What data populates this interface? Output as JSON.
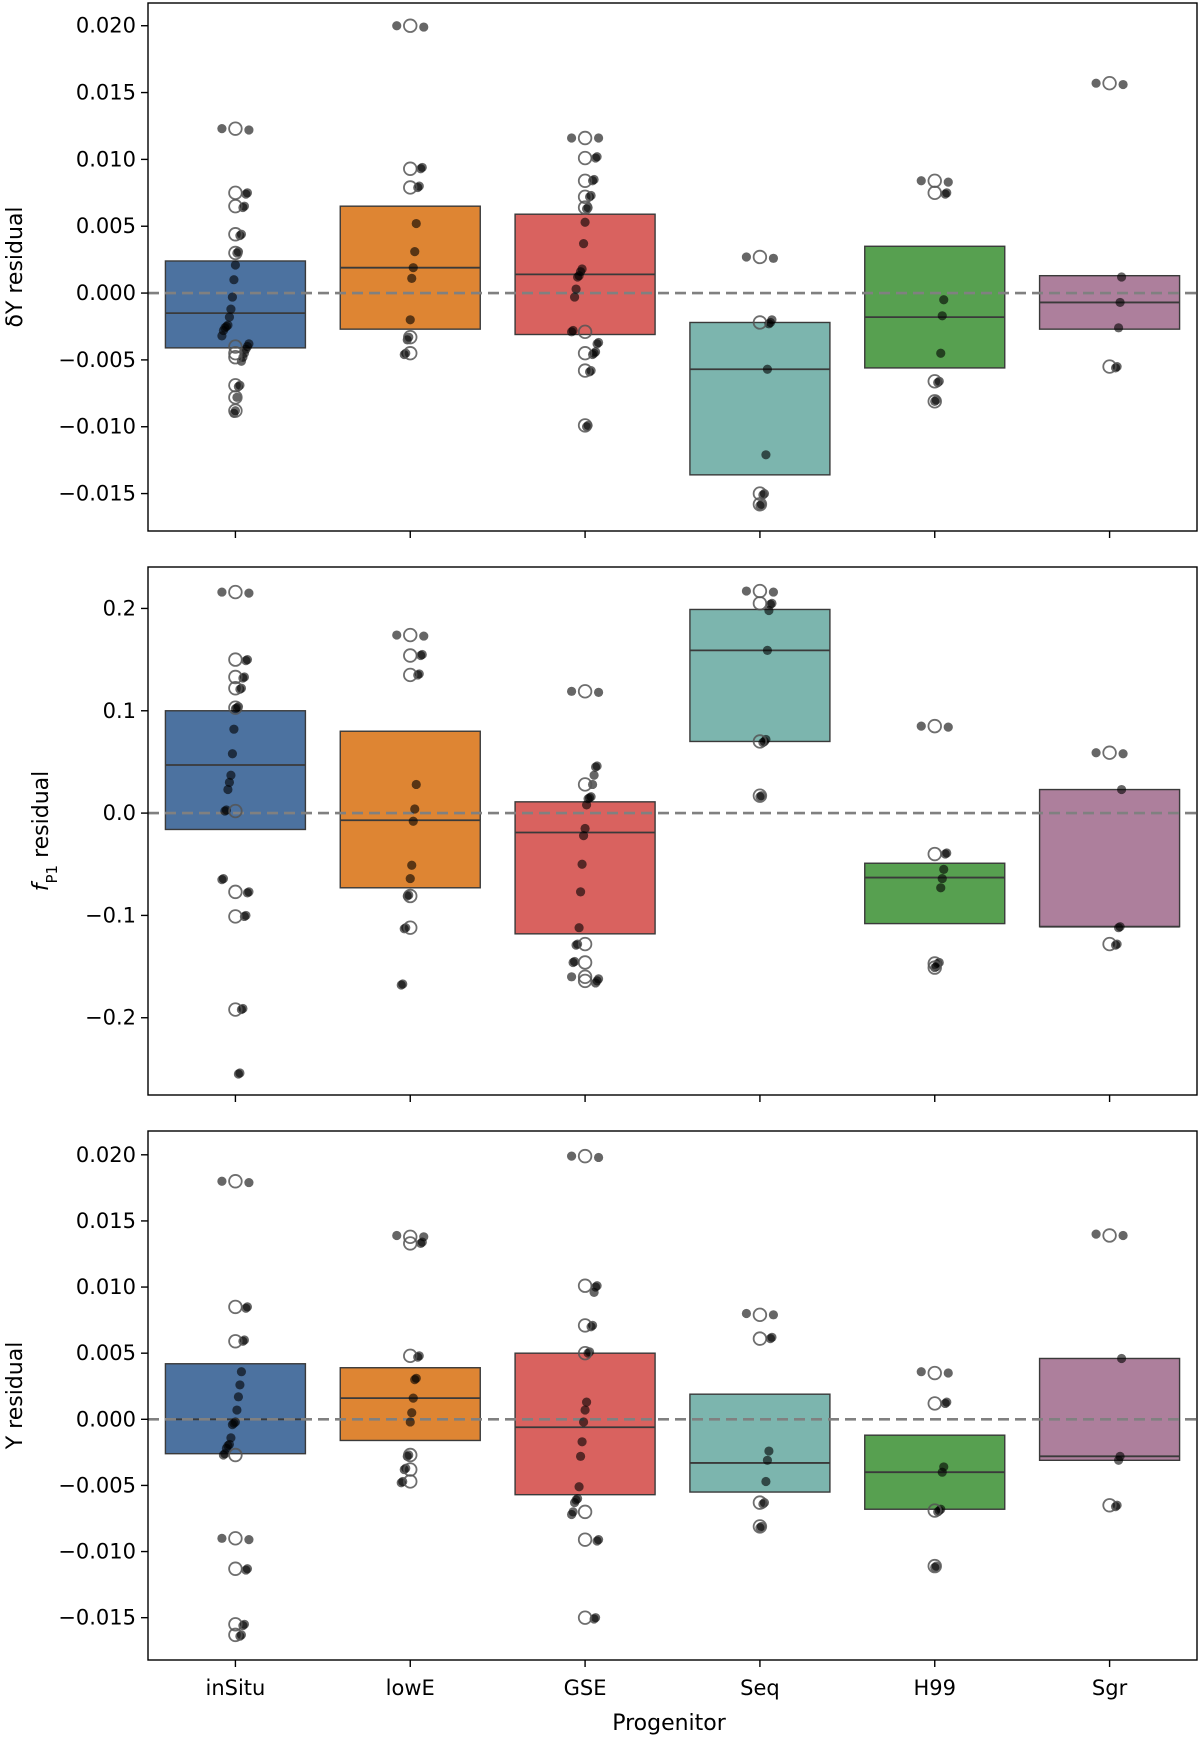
{
  "categories": [
    "inSitu",
    "lowE",
    "GSE",
    "Seq",
    "H99",
    "Sgr"
  ],
  "colors": {
    "inSitu": "#4c72a0",
    "lowE": "#de8533",
    "GSE": "#d9625f",
    "Seq": "#7cb5ae",
    "H99": "#57a050",
    "Sgr": "#ad7f9c",
    "zero_line": "#808080"
  },
  "xlabel": "Progenitor",
  "chart_data": [
    {
      "type": "box",
      "ylabel": "δY residual",
      "ylim": [
        -0.0178,
        0.0217
      ],
      "yticks": [
        -0.015,
        -0.01,
        -0.005,
        0.0,
        0.005,
        0.01,
        0.015,
        0.02
      ],
      "ytick_labels": [
        "−0.015",
        "−0.010",
        "−0.005",
        "0.000",
        "0.005",
        "0.010",
        "0.015",
        "0.020"
      ],
      "zero_line": 0.0,
      "boxes": [
        {
          "category": "inSitu",
          "q1": -0.0041,
          "median": -0.0015,
          "q3": 0.0024
        },
        {
          "category": "lowE",
          "q1": -0.0027,
          "median": 0.0019,
          "q3": 0.0065
        },
        {
          "category": "GSE",
          "q1": -0.0031,
          "median": 0.0014,
          "q3": 0.0059
        },
        {
          "category": "Seq",
          "q1": -0.0136,
          "median": -0.0057,
          "q3": -0.0022
        },
        {
          "category": "H99",
          "q1": -0.0056,
          "median": -0.0018,
          "q3": 0.0035
        },
        {
          "category": "Sgr",
          "q1": -0.0027,
          "median": -0.0007,
          "q3": 0.0013
        }
      ],
      "points": {
        "inSitu": [
          0.0123,
          0.0122,
          0.0075,
          0.0074,
          0.0065,
          0.0064,
          0.0044,
          0.0043,
          0.0031,
          0.003,
          0.0021,
          0.001,
          -0.0003,
          -0.0012,
          -0.0018,
          -0.0024,
          -0.0025,
          -0.0026,
          -0.0028,
          -0.0032,
          -0.0038,
          -0.004,
          -0.0042,
          -0.0045,
          -0.0048,
          -0.0051,
          -0.0069,
          -0.007,
          -0.0078,
          -0.0088,
          -0.009
        ],
        "lowE": [
          0.02,
          0.0199,
          0.0094,
          0.0093,
          0.008,
          0.0079,
          0.0052,
          0.0031,
          0.0019,
          0.0011,
          -0.002,
          -0.0033,
          -0.0035,
          -0.0045,
          -0.0046
        ],
        "GSE": [
          0.0116,
          0.0116,
          0.0102,
          0.0101,
          0.0085,
          0.0084,
          0.0073,
          0.0072,
          0.0064,
          0.0063,
          0.0053,
          0.0037,
          0.0018,
          0.0016,
          0.0013,
          0.0012,
          0.0003,
          -0.0003,
          -0.0028,
          -0.0029,
          -0.0037,
          -0.0038,
          -0.0044,
          -0.0045,
          -0.0046,
          -0.0058,
          -0.0059,
          -0.0099,
          -0.01
        ],
        "Seq": [
          0.0027,
          0.0026,
          -0.002,
          -0.0022,
          -0.0023,
          -0.0057,
          -0.0121,
          -0.015,
          -0.0151,
          -0.0158,
          -0.0159
        ],
        "H99": [
          0.0084,
          0.0083,
          0.0075,
          0.0074,
          -0.0005,
          -0.0017,
          -0.0045,
          -0.0066,
          -0.0067,
          -0.008,
          -0.0081
        ],
        "Sgr": [
          0.0157,
          0.0156,
          0.0012,
          -0.0007,
          -0.0026,
          -0.0055,
          -0.0056
        ]
      },
      "open_points": {
        "inSitu": [
          0.0123,
          0.0075,
          0.0065,
          0.0044,
          0.003,
          -0.004,
          -0.0045,
          -0.0048,
          -0.0069,
          -0.0078,
          -0.0088
        ],
        "lowE": [
          0.02,
          0.0093,
          0.0079,
          -0.0033,
          -0.0045
        ],
        "GSE": [
          0.0116,
          0.0101,
          0.0084,
          0.0072,
          0.0064,
          -0.0029,
          -0.0045,
          -0.0058,
          -0.0099
        ],
        "Seq": [
          0.0027,
          -0.0022,
          -0.015,
          -0.0158
        ],
        "H99": [
          0.0084,
          0.0075,
          -0.0066,
          -0.0081
        ],
        "Sgr": [
          0.0157,
          -0.0055
        ]
      }
    },
    {
      "type": "box",
      "ylabel": "f_P1 residual",
      "ylabel_main": "f",
      "ylabel_sub": "P1",
      "ylabel_rest": " residual",
      "ylim": [
        -0.2755,
        0.2405
      ],
      "yticks": [
        -0.2,
        -0.1,
        0.0,
        0.1,
        0.2
      ],
      "ytick_labels": [
        "−0.2",
        "−0.1",
        "0.0",
        "0.1",
        "0.2"
      ],
      "zero_line": 0.0,
      "boxes": [
        {
          "category": "inSitu",
          "q1": -0.016,
          "median": 0.047,
          "q3": 0.1
        },
        {
          "category": "lowE",
          "q1": -0.073,
          "median": -0.007,
          "q3": 0.08
        },
        {
          "category": "GSE",
          "q1": -0.118,
          "median": -0.019,
          "q3": 0.011
        },
        {
          "category": "Seq",
          "q1": 0.07,
          "median": 0.159,
          "q3": 0.199
        },
        {
          "category": "H99",
          "q1": -0.108,
          "median": -0.063,
          "q3": -0.049
        },
        {
          "category": "Sgr",
          "q1": -0.111,
          "median": -0.111,
          "q3": 0.023
        }
      ],
      "points": {
        "inSitu": [
          0.216,
          0.215,
          0.15,
          0.149,
          0.133,
          0.132,
          0.122,
          0.121,
          0.104,
          0.103,
          0.102,
          0.082,
          0.058,
          0.037,
          0.03,
          0.023,
          0.003,
          0.002,
          -0.064,
          -0.065,
          -0.077,
          -0.078,
          -0.1,
          -0.101,
          -0.191,
          -0.192,
          -0.254,
          -0.255
        ],
        "lowE": [
          0.174,
          0.173,
          0.155,
          0.154,
          0.136,
          0.135,
          0.028,
          0.004,
          -0.008,
          -0.051,
          -0.064,
          -0.08,
          -0.081,
          -0.112,
          -0.113,
          -0.167,
          -0.168
        ],
        "GSE": [
          0.119,
          0.118,
          0.046,
          0.045,
          0.037,
          0.028,
          0.016,
          0.015,
          0.014,
          0.008,
          -0.015,
          -0.022,
          -0.05,
          -0.077,
          -0.112,
          -0.128,
          -0.129,
          -0.145,
          -0.146,
          -0.16,
          -0.162,
          -0.164,
          -0.166
        ],
        "Seq": [
          0.217,
          0.216,
          0.205,
          0.204,
          0.198,
          0.159,
          0.072,
          0.07,
          0.069,
          0.017,
          0.016
        ],
        "H99": [
          0.085,
          0.084,
          -0.039,
          -0.04,
          -0.055,
          -0.064,
          -0.073,
          -0.146,
          -0.147,
          -0.15,
          -0.151
        ],
        "Sgr": [
          0.059,
          0.058,
          0.023,
          -0.111,
          -0.112,
          -0.128,
          -0.129
        ]
      },
      "open_points": {
        "inSitu": [
          0.216,
          0.15,
          0.133,
          0.122,
          0.103,
          0.002,
          -0.077,
          -0.101,
          -0.192
        ],
        "lowE": [
          0.174,
          0.154,
          0.135,
          -0.081,
          -0.112
        ],
        "GSE": [
          0.119,
          0.028,
          -0.128,
          -0.146,
          -0.16,
          -0.164
        ],
        "Seq": [
          0.217,
          0.205,
          0.07,
          0.017
        ],
        "H99": [
          0.085,
          -0.04,
          -0.147,
          -0.151
        ],
        "Sgr": [
          0.059,
          -0.128
        ]
      }
    },
    {
      "type": "box",
      "ylabel": "Y residual",
      "ylim": [
        -0.0182,
        0.0218
      ],
      "yticks": [
        -0.015,
        -0.01,
        -0.005,
        0.0,
        0.005,
        0.01,
        0.015,
        0.02
      ],
      "ytick_labels": [
        "−0.015",
        "−0.010",
        "−0.005",
        "0.000",
        "0.005",
        "0.010",
        "0.015",
        "0.020"
      ],
      "zero_line": 0.0,
      "boxes": [
        {
          "category": "inSitu",
          "q1": -0.0026,
          "median": -0.0,
          "q3": 0.0042
        },
        {
          "category": "lowE",
          "q1": -0.0016,
          "median": 0.0016,
          "q3": 0.0039
        },
        {
          "category": "GSE",
          "q1": -0.0057,
          "median": -0.0006,
          "q3": 0.005
        },
        {
          "category": "Seq",
          "q1": -0.0055,
          "median": -0.0033,
          "q3": 0.0019
        },
        {
          "category": "H99",
          "q1": -0.0068,
          "median": -0.004,
          "q3": -0.0012
        },
        {
          "category": "Sgr",
          "q1": -0.0031,
          "median": -0.0028,
          "q3": 0.0046
        }
      ],
      "points": {
        "inSitu": [
          0.018,
          0.0179,
          0.0085,
          0.0084,
          0.006,
          0.0059,
          0.0036,
          0.0026,
          0.0017,
          0.0007,
          -0.0002,
          -0.0003,
          -0.0004,
          -0.0014,
          -0.0019,
          -0.002,
          -0.0022,
          -0.0026,
          -0.0027,
          -0.009,
          -0.0091,
          -0.0113,
          -0.0114,
          -0.0155,
          -0.0156,
          -0.0163,
          -0.0164
        ],
        "lowE": [
          0.0139,
          0.0138,
          0.0134,
          0.0133,
          0.0048,
          0.0047,
          0.0031,
          0.003,
          0.0016,
          0.0005,
          -0.0002,
          -0.0027,
          -0.0028,
          -0.0037,
          -0.0038,
          -0.0047,
          -0.0048
        ],
        "GSE": [
          0.0199,
          0.0198,
          0.0101,
          0.01,
          0.0096,
          0.0071,
          0.007,
          0.0051,
          0.005,
          0.0013,
          0.0007,
          -0.0002,
          -0.0017,
          -0.0028,
          -0.0051,
          -0.006,
          -0.0061,
          -0.0063,
          -0.007,
          -0.0072,
          -0.0091,
          -0.0092,
          -0.015,
          -0.0151
        ],
        "Seq": [
          0.008,
          0.0079,
          0.0062,
          0.0061,
          -0.0024,
          -0.0031,
          -0.0047,
          -0.0063,
          -0.0064,
          -0.0081,
          -0.0082
        ],
        "H99": [
          0.0036,
          0.0035,
          0.0013,
          0.0012,
          -0.0036,
          -0.004,
          -0.0068,
          -0.0069,
          -0.007,
          -0.0111,
          -0.0112
        ],
        "Sgr": [
          0.014,
          0.0139,
          0.0046,
          -0.0028,
          -0.0031,
          -0.0065,
          -0.0066
        ]
      },
      "open_points": {
        "inSitu": [
          0.018,
          0.0085,
          0.0059,
          -0.0027,
          -0.009,
          -0.0113,
          -0.0155,
          -0.0163
        ],
        "lowE": [
          0.0138,
          0.0133,
          0.0048,
          -0.0027,
          -0.0038,
          -0.0047
        ],
        "GSE": [
          0.0199,
          0.0101,
          0.0071,
          0.005,
          -0.007,
          -0.0091,
          -0.015
        ],
        "Seq": [
          0.0079,
          0.0061,
          -0.0063,
          -0.0081
        ],
        "H99": [
          0.0035,
          0.0012,
          -0.0069,
          -0.0111
        ],
        "Sgr": [
          0.0139,
          -0.0065
        ]
      }
    }
  ]
}
